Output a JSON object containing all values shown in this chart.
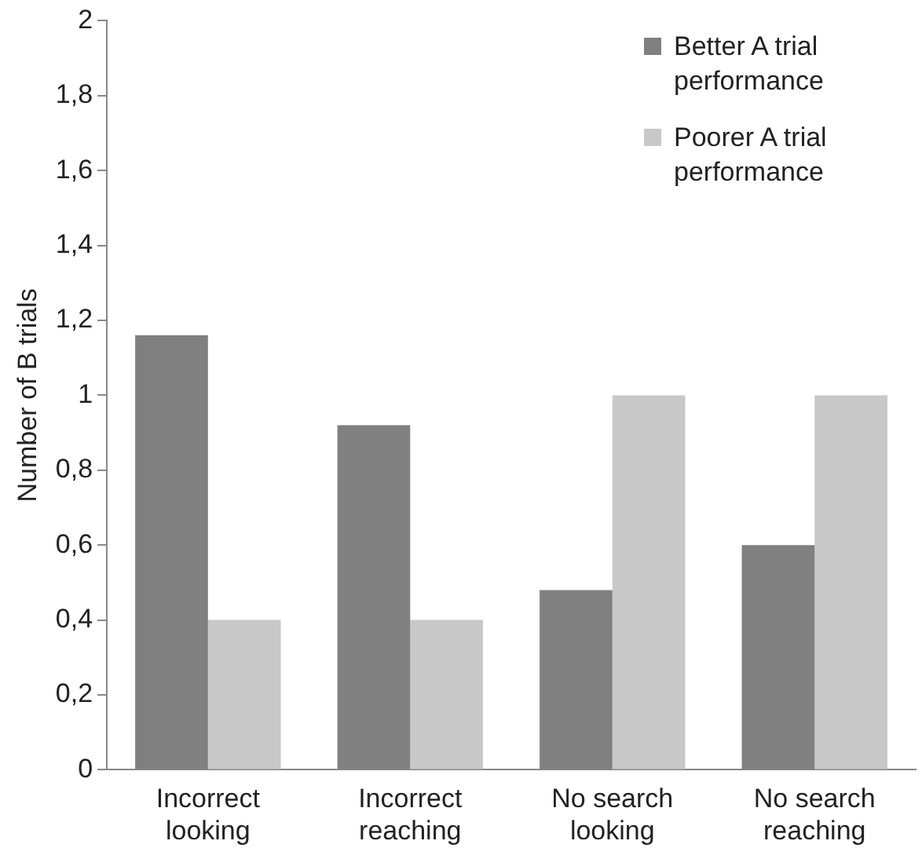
{
  "chart_data": {
    "type": "bar",
    "ylabel": "Number of B trials",
    "categories": [
      "Incorrect looking",
      "Incorrect reaching",
      "No search looking",
      "No search reaching"
    ],
    "series": [
      {
        "name": "Better A trial performance",
        "color": "#808080",
        "values": [
          1.16,
          0.92,
          0.48,
          0.6
        ]
      },
      {
        "name": "Poorer A trial performance",
        "color": "#c8c8c8",
        "values": [
          0.4,
          0.4,
          1.0,
          1.0
        ]
      }
    ],
    "ylim": [
      0,
      2
    ],
    "yticks": [
      0,
      {
        "value": 0.2,
        "label": "0,2"
      },
      {
        "value": 0.4,
        "label": "0,4"
      },
      {
        "value": 0.6,
        "label": "0,6"
      },
      {
        "value": 0.8,
        "label": "0,8"
      },
      1,
      {
        "value": 1.2,
        "label": "1,2"
      },
      {
        "value": 1.4,
        "label": "1,4"
      },
      {
        "value": 1.6,
        "label": "1,6"
      },
      {
        "value": 1.8,
        "label": "1,8"
      },
      2
    ],
    "grid": false,
    "legend": "top right"
  }
}
